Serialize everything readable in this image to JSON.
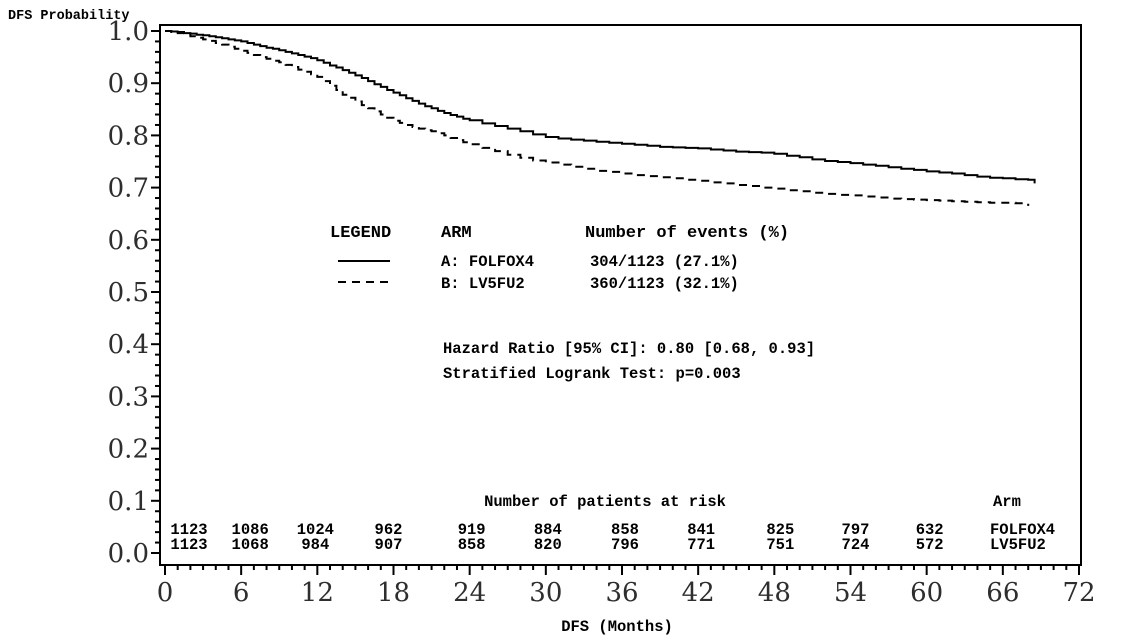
{
  "chart": {
    "y_axis_title": "DFS Probability",
    "x_axis_title": "DFS (Months)"
  },
  "legend": {
    "col_legend": "LEGEND",
    "col_arm": "ARM",
    "col_events": "Number of events (%)",
    "rows": [
      {
        "arm": "A: FOLFOX4",
        "events": "304/1123  (27.1%)",
        "line": "solid"
      },
      {
        "arm": "B: LV5FU2",
        "events": "360/1123  (32.1%)",
        "line": "dashed"
      }
    ]
  },
  "stats": {
    "hazard_ratio": "Hazard Ratio [95% CI]: 0.80 [0.68, 0.93]",
    "logrank": "Stratified Logrank Test:  p=0.003"
  },
  "at_risk": {
    "header": "Number of patients at risk",
    "arm_header": "Arm",
    "months": [
      0,
      6,
      12,
      18,
      24,
      30,
      36,
      42,
      48,
      54,
      60
    ],
    "rows": [
      {
        "arm": "FOLFOX4",
        "counts": [
          1123,
          1086,
          1024,
          962,
          919,
          884,
          858,
          841,
          825,
          797,
          632
        ]
      },
      {
        "arm": "LV5FU2",
        "counts": [
          1123,
          1068,
          984,
          907,
          858,
          820,
          796,
          771,
          751,
          724,
          572
        ]
      }
    ]
  },
  "chart_data": {
    "type": "line",
    "subtype": "kaplan-meier-step",
    "title": "",
    "xlabel": "DFS (Months)",
    "ylabel": "DFS Probability",
    "xlim": [
      0,
      72
    ],
    "ylim": [
      0.0,
      1.0
    ],
    "x_ticks": [
      0,
      6,
      12,
      18,
      24,
      30,
      36,
      42,
      48,
      54,
      60,
      66,
      72
    ],
    "y_tick_labels": [
      "0.0",
      "0.1",
      "0.2",
      "0.3",
      "0.4",
      "0.5",
      "0.6",
      "0.7",
      "0.8",
      "0.9",
      "1.0"
    ],
    "x_minor_step": 1,
    "y_minor_step": 0.02,
    "grid": false,
    "legend_position": "inside-upper-middle",
    "line_color": "#000000",
    "series": [
      {
        "name": "A: FOLFOX4",
        "line_style": "solid",
        "color": "#000000",
        "points": [
          [
            0,
            1.0
          ],
          [
            0.5,
            0.999
          ],
          [
            1,
            0.998
          ],
          [
            1.5,
            0.996
          ],
          [
            2,
            0.995
          ],
          [
            2.5,
            0.993
          ],
          [
            3,
            0.992
          ],
          [
            3.5,
            0.99
          ],
          [
            4,
            0.988
          ],
          [
            4.5,
            0.986
          ],
          [
            5,
            0.984
          ],
          [
            5.5,
            0.982
          ],
          [
            6,
            0.98
          ],
          [
            6.5,
            0.977
          ],
          [
            7,
            0.974
          ],
          [
            7.5,
            0.971
          ],
          [
            8,
            0.968
          ],
          [
            8.5,
            0.966
          ],
          [
            9,
            0.963
          ],
          [
            9.5,
            0.96
          ],
          [
            10,
            0.957
          ],
          [
            10.5,
            0.954
          ],
          [
            11,
            0.951
          ],
          [
            11.5,
            0.948
          ],
          [
            12,
            0.944
          ],
          [
            12.5,
            0.939
          ],
          [
            13,
            0.934
          ],
          [
            13.5,
            0.93
          ],
          [
            14,
            0.925
          ],
          [
            14.5,
            0.92
          ],
          [
            15,
            0.915
          ],
          [
            15.5,
            0.91
          ],
          [
            16,
            0.904
          ],
          [
            16.5,
            0.898
          ],
          [
            17,
            0.893
          ],
          [
            17.5,
            0.887
          ],
          [
            18,
            0.882
          ],
          [
            18.5,
            0.877
          ],
          [
            19,
            0.871
          ],
          [
            19.5,
            0.866
          ],
          [
            20,
            0.861
          ],
          [
            20.5,
            0.856
          ],
          [
            21,
            0.852
          ],
          [
            21.5,
            0.847
          ],
          [
            22,
            0.843
          ],
          [
            22.5,
            0.839
          ],
          [
            23,
            0.836
          ],
          [
            23.5,
            0.832
          ],
          [
            24,
            0.829
          ],
          [
            25,
            0.823
          ],
          [
            26,
            0.818
          ],
          [
            27,
            0.813
          ],
          [
            28,
            0.808
          ],
          [
            29,
            0.802
          ],
          [
            30,
            0.797
          ],
          [
            31,
            0.794
          ],
          [
            32,
            0.792
          ],
          [
            33,
            0.79
          ],
          [
            34,
            0.788
          ],
          [
            35,
            0.786
          ],
          [
            36,
            0.784
          ],
          [
            37,
            0.782
          ],
          [
            38,
            0.78
          ],
          [
            39,
            0.778
          ],
          [
            40,
            0.777
          ],
          [
            41,
            0.776
          ],
          [
            42,
            0.775
          ],
          [
            43,
            0.773
          ],
          [
            44,
            0.771
          ],
          [
            45,
            0.769
          ],
          [
            46,
            0.768
          ],
          [
            47,
            0.767
          ],
          [
            48,
            0.765
          ],
          [
            49,
            0.761
          ],
          [
            50,
            0.758
          ],
          [
            51,
            0.754
          ],
          [
            52,
            0.751
          ],
          [
            53,
            0.749
          ],
          [
            54,
            0.747
          ],
          [
            55,
            0.744
          ],
          [
            56,
            0.742
          ],
          [
            57,
            0.739
          ],
          [
            58,
            0.736
          ],
          [
            59,
            0.734
          ],
          [
            60,
            0.731
          ],
          [
            61,
            0.729
          ],
          [
            62,
            0.727
          ],
          [
            63,
            0.724
          ],
          [
            64,
            0.721
          ],
          [
            65,
            0.719
          ],
          [
            66,
            0.718
          ],
          [
            67,
            0.716
          ],
          [
            68,
            0.715
          ],
          [
            68.5,
            0.708
          ]
        ]
      },
      {
        "name": "B: LV5FU2",
        "line_style": "dashed",
        "color": "#000000",
        "points": [
          [
            0,
            1.0
          ],
          [
            0.5,
            0.998
          ],
          [
            1,
            0.996
          ],
          [
            1.5,
            0.993
          ],
          [
            2,
            0.99
          ],
          [
            2.5,
            0.987
          ],
          [
            3,
            0.984
          ],
          [
            3.5,
            0.981
          ],
          [
            4,
            0.977
          ],
          [
            4.5,
            0.974
          ],
          [
            5,
            0.97
          ],
          [
            5.5,
            0.966
          ],
          [
            6,
            0.962
          ],
          [
            6.5,
            0.958
          ],
          [
            7,
            0.954
          ],
          [
            7.5,
            0.95
          ],
          [
            8,
            0.947
          ],
          [
            8.5,
            0.943
          ],
          [
            9,
            0.94
          ],
          [
            9.5,
            0.935
          ],
          [
            10,
            0.931
          ],
          [
            10.5,
            0.926
          ],
          [
            11,
            0.922
          ],
          [
            11.5,
            0.917
          ],
          [
            12,
            0.912
          ],
          [
            12.5,
            0.904
          ],
          [
            13,
            0.895
          ],
          [
            13.5,
            0.887
          ],
          [
            14,
            0.878
          ],
          [
            14.5,
            0.872
          ],
          [
            15,
            0.865
          ],
          [
            15.5,
            0.858
          ],
          [
            16,
            0.852
          ],
          [
            16.5,
            0.846
          ],
          [
            17,
            0.84
          ],
          [
            17.5,
            0.834
          ],
          [
            18,
            0.828
          ],
          [
            18.5,
            0.824
          ],
          [
            19,
            0.82
          ],
          [
            19.5,
            0.816
          ],
          [
            20,
            0.813
          ],
          [
            20.5,
            0.81
          ],
          [
            21,
            0.808
          ],
          [
            21.5,
            0.804
          ],
          [
            22,
            0.8
          ],
          [
            22.5,
            0.795
          ],
          [
            23,
            0.791
          ],
          [
            23.5,
            0.787
          ],
          [
            24,
            0.783
          ],
          [
            25,
            0.776
          ],
          [
            26,
            0.77
          ],
          [
            27,
            0.763
          ],
          [
            28,
            0.757
          ],
          [
            29,
            0.752
          ],
          [
            30,
            0.748
          ],
          [
            31,
            0.744
          ],
          [
            32,
            0.74
          ],
          [
            33,
            0.736
          ],
          [
            34,
            0.732
          ],
          [
            35,
            0.73
          ],
          [
            36,
            0.727
          ],
          [
            37,
            0.724
          ],
          [
            38,
            0.722
          ],
          [
            39,
            0.72
          ],
          [
            40,
            0.718
          ],
          [
            41,
            0.715
          ],
          [
            42,
            0.713
          ],
          [
            43,
            0.71
          ],
          [
            44,
            0.708
          ],
          [
            45,
            0.705
          ],
          [
            46,
            0.703
          ],
          [
            47,
            0.7
          ],
          [
            48,
            0.698
          ],
          [
            49,
            0.695
          ],
          [
            50,
            0.693
          ],
          [
            51,
            0.69
          ],
          [
            52,
            0.688
          ],
          [
            53,
            0.686
          ],
          [
            54,
            0.685
          ],
          [
            55,
            0.683
          ],
          [
            56,
            0.681
          ],
          [
            57,
            0.679
          ],
          [
            58,
            0.678
          ],
          [
            59,
            0.677
          ],
          [
            60,
            0.676
          ],
          [
            61,
            0.675
          ],
          [
            62,
            0.674
          ],
          [
            63,
            0.673
          ],
          [
            64,
            0.672
          ],
          [
            65,
            0.671
          ],
          [
            66,
            0.671
          ],
          [
            67,
            0.67
          ],
          [
            68,
            0.665
          ]
        ]
      }
    ]
  }
}
